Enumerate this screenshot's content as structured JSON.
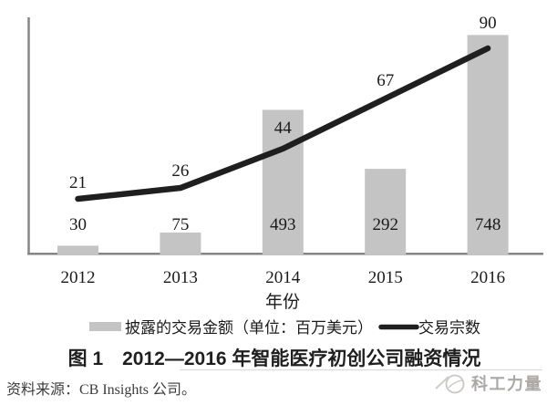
{
  "chart_data": {
    "type": "bar",
    "categories": [
      "2012",
      "2013",
      "2014",
      "2015",
      "2016"
    ],
    "series": [
      {
        "name": "披露的交易金额（单位：百万美元）",
        "kind": "bar",
        "values": [
          30,
          75,
          493,
          292,
          748
        ]
      },
      {
        "name": "交易宗数",
        "kind": "line",
        "values": [
          21,
          26,
          44,
          67,
          90
        ]
      }
    ],
    "xlabel": "年份",
    "ylabel": "",
    "value_labels_shown": true,
    "grid": false,
    "legend_position": "bottom-center",
    "colors": {
      "bar": "#c5c4c4",
      "line": "#1f1f1f",
      "axis": "#858585",
      "text": "#1a1a1a"
    }
  },
  "legend": {
    "bar_label": "披露的交易金额（单位：百万美元）",
    "line_label": "交易宗数"
  },
  "xlabel": "年份",
  "caption": "图 1　2012—2016 年智能医疗初创公司融资情况",
  "source_note": "资料来源：CB Insights 公司。",
  "watermark": {
    "text": "科工力量"
  }
}
